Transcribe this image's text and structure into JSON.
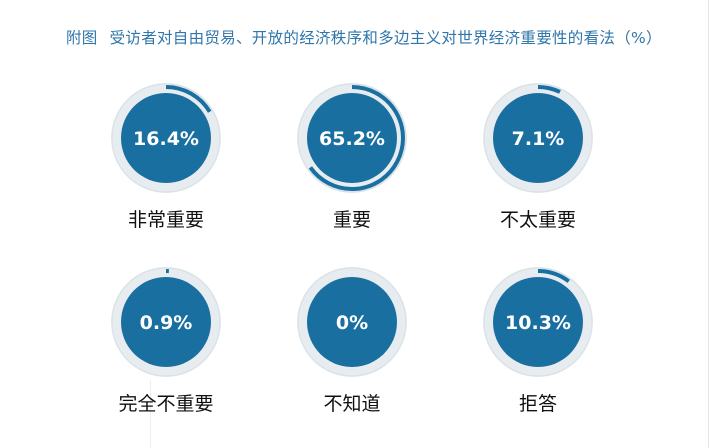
{
  "title": {
    "prefix": "附图",
    "text": "受访者对自由贸易、开放的经济秩序和多边主义对世界经济重要性的看法（%）"
  },
  "colors": {
    "title": "#2f76ab",
    "disc": "#1a6fa1",
    "track": "#e6ecef",
    "progress": "#1a6fa1",
    "label": "#111111"
  },
  "chart_data": {
    "type": "radial-progress",
    "unit": "%",
    "items": [
      {
        "label": "非常重要",
        "value": 16.4,
        "display": "16.4%"
      },
      {
        "label": "重要",
        "value": 65.2,
        "display": "65.2%"
      },
      {
        "label": "不太重要",
        "value": 7.1,
        "display": "7.1%"
      },
      {
        "label": "完全不重要",
        "value": 0.9,
        "display": "0.9%"
      },
      {
        "label": "不知道",
        "value": 0,
        "display": "0%"
      },
      {
        "label": "拒答",
        "value": 10.3,
        "display": "10.3%"
      }
    ]
  }
}
